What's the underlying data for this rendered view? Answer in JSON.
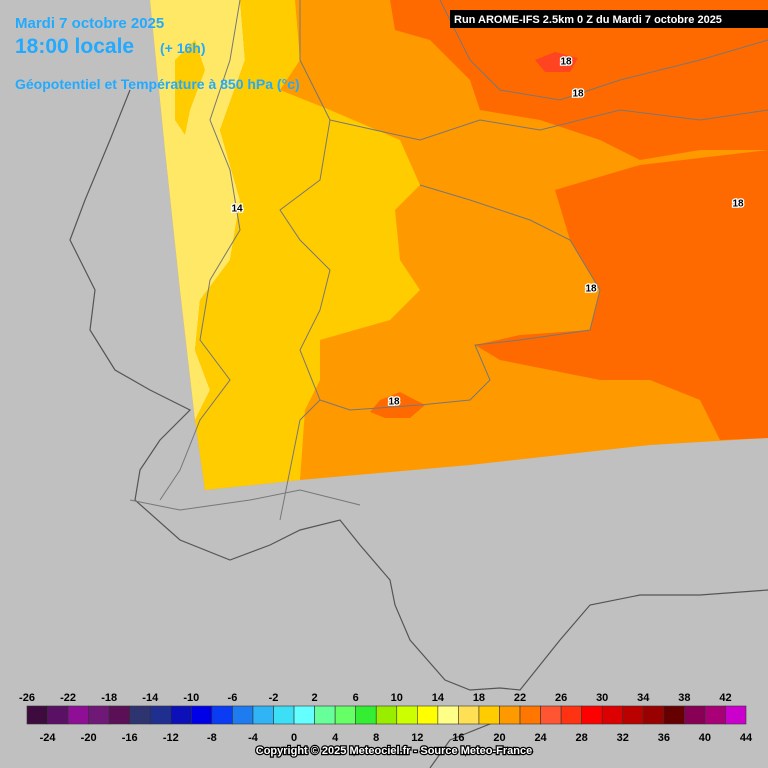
{
  "header": {
    "date": "Mardi 7 octobre 2025",
    "time": "18:00 locale",
    "offset": "(+ 16h)",
    "subtitle": "Géopotentiel et Température à 850 hPa (°c)",
    "run": "Run AROME-IFS 2.5km 0 Z du Mardi 7 octobre 2025"
  },
  "contour_labels": [
    "18",
    "18",
    "18",
    "14",
    "18",
    "18"
  ],
  "legend": {
    "ticks": [
      -26,
      -24,
      -22,
      -20,
      -18,
      -16,
      -14,
      -12,
      -10,
      -8,
      -6,
      -4,
      -2,
      0,
      2,
      4,
      6,
      8,
      10,
      12,
      14,
      16,
      18,
      20,
      22,
      24,
      26,
      28,
      30,
      32,
      34,
      36,
      38,
      40,
      42,
      44
    ],
    "colors": [
      "#3d0b3e",
      "#5a1065",
      "#8e0f95",
      "#6f1878",
      "#5a0f56",
      "#2e3470",
      "#1f2f8f",
      "#0c10b8",
      "#0000e8",
      "#0a3cf5",
      "#1e7cf0",
      "#30b4f5",
      "#3cdff5",
      "#66ffff",
      "#66ff99",
      "#66ff66",
      "#33ee33",
      "#99ee00",
      "#ccff00",
      "#ffff00",
      "#ffff88",
      "#ffe055",
      "#ffcc00",
      "#ff9900",
      "#ff7700",
      "#ff5533",
      "#ff3311",
      "#ff0000",
      "#dd0000",
      "#bb0000",
      "#990000",
      "#660000",
      "#880055",
      "#aa0077",
      "#cc00cc",
      "#ff00ff",
      "#ff77ff"
    ]
  },
  "footer": {
    "copyright": "Copyright © 2025 Meteociel.fr - Source Meteo-France"
  }
}
